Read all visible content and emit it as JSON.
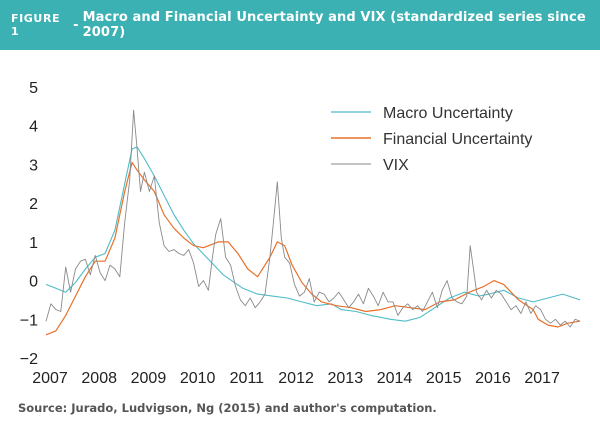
{
  "header": {
    "figure_label": "FIGURE 1",
    "separator": "-",
    "title": "Macro and Financial Uncertainty and VIX (standardized series since 2007)",
    "background_color": "#3cb1b4"
  },
  "footer": {
    "source": "Source: Jurado, Ludvigson, Ng (2015) and author's computation."
  },
  "chart_data": {
    "type": "line",
    "title": "",
    "xlabel": "",
    "ylabel": "",
    "xlim": [
      2007,
      2017.85
    ],
    "ylim": [
      -2,
      5
    ],
    "x_ticks": [
      2007,
      2008,
      2009,
      2010,
      2011,
      2012,
      2013,
      2014,
      2015,
      2016,
      2017
    ],
    "x_tick_labels": [
      "2007",
      "2008",
      "2009",
      "2010",
      "2011",
      "2012",
      "2013",
      "2014",
      "2015",
      "2016",
      "2017"
    ],
    "y_ticks": [
      -2,
      -1,
      0,
      1,
      2,
      3,
      4,
      5
    ],
    "y_tick_labels": [
      "−2",
      "−1",
      "0",
      "1",
      "2",
      "3",
      "4",
      "5"
    ],
    "grid": false,
    "legend": "top-right",
    "series": [
      {
        "name": "Macro Uncertainty",
        "color": "#4fbcc8",
        "width": 1.1,
        "x": [
          2007.0,
          2007.2,
          2007.4,
          2007.6,
          2007.8,
          2008.0,
          2008.2,
          2008.4,
          2008.6,
          2008.75,
          2008.85,
          2009.0,
          2009.2,
          2009.4,
          2009.6,
          2009.8,
          2010.0,
          2010.3,
          2010.6,
          2011.0,
          2011.3,
          2011.6,
          2011.9,
          2012.2,
          2012.5,
          2012.8,
          2013.0,
          2013.3,
          2013.6,
          2014.0,
          2014.3,
          2014.6,
          2014.9,
          2015.2,
          2015.5,
          2015.8,
          2016.0,
          2016.3,
          2016.6,
          2016.9,
          2017.2,
          2017.5,
          2017.85
        ],
        "values": [
          -0.1,
          -0.2,
          -0.3,
          -0.05,
          0.3,
          0.6,
          0.7,
          1.3,
          2.5,
          3.4,
          3.45,
          3.15,
          2.7,
          2.2,
          1.7,
          1.3,
          0.95,
          0.55,
          0.15,
          -0.2,
          -0.35,
          -0.4,
          -0.45,
          -0.55,
          -0.65,
          -0.6,
          -0.75,
          -0.8,
          -0.9,
          -1.0,
          -1.05,
          -0.95,
          -0.7,
          -0.45,
          -0.3,
          -0.4,
          -0.35,
          -0.25,
          -0.45,
          -0.55,
          -0.45,
          -0.35,
          -0.5
        ]
      },
      {
        "name": "Financial Uncertainty",
        "color": "#e8702a",
        "width": 1.2,
        "x": [
          2007.0,
          2007.2,
          2007.4,
          2007.6,
          2007.8,
          2008.0,
          2008.2,
          2008.4,
          2008.6,
          2008.75,
          2008.85,
          2009.0,
          2009.2,
          2009.4,
          2009.6,
          2009.8,
          2010.0,
          2010.2,
          2010.5,
          2010.7,
          2010.9,
          2011.1,
          2011.3,
          2011.55,
          2011.7,
          2011.85,
          2012.0,
          2012.2,
          2012.4,
          2012.6,
          2012.9,
          2013.2,
          2013.5,
          2013.8,
          2014.1,
          2014.4,
          2014.7,
          2015.0,
          2015.3,
          2015.6,
          2015.9,
          2016.1,
          2016.3,
          2016.6,
          2016.9,
          2017.0,
          2017.2,
          2017.4,
          2017.6,
          2017.85
        ],
        "values": [
          -1.4,
          -1.3,
          -0.9,
          -0.4,
          0.1,
          0.5,
          0.5,
          1.1,
          2.3,
          3.05,
          2.85,
          2.6,
          2.3,
          1.7,
          1.35,
          1.1,
          0.9,
          0.85,
          1.0,
          1.0,
          0.7,
          0.3,
          0.1,
          0.6,
          1.0,
          0.9,
          0.4,
          -0.05,
          -0.35,
          -0.55,
          -0.65,
          -0.7,
          -0.8,
          -0.75,
          -0.65,
          -0.7,
          -0.75,
          -0.55,
          -0.5,
          -0.3,
          -0.15,
          0.0,
          -0.1,
          -0.5,
          -0.75,
          -1.0,
          -1.15,
          -1.2,
          -1.1,
          -1.05
        ]
      },
      {
        "name": "VIX",
        "color": "#8a8a8a",
        "width": 0.9,
        "x": [
          2007.0,
          2007.1,
          2007.2,
          2007.3,
          2007.4,
          2007.5,
          2007.6,
          2007.7,
          2007.8,
          2007.9,
          2008.0,
          2008.1,
          2008.2,
          2008.3,
          2008.4,
          2008.5,
          2008.6,
          2008.7,
          2008.78,
          2008.85,
          2008.92,
          2009.0,
          2009.1,
          2009.2,
          2009.3,
          2009.4,
          2009.5,
          2009.6,
          2009.7,
          2009.8,
          2009.9,
          2010.0,
          2010.1,
          2010.2,
          2010.3,
          2010.38,
          2010.45,
          2010.55,
          2010.65,
          2010.75,
          2010.85,
          2010.95,
          2011.05,
          2011.15,
          2011.25,
          2011.35,
          2011.45,
          2011.55,
          2011.62,
          2011.7,
          2011.78,
          2011.85,
          2011.95,
          2012.05,
          2012.15,
          2012.25,
          2012.35,
          2012.45,
          2012.55,
          2012.65,
          2012.75,
          2012.85,
          2012.95,
          2013.05,
          2013.15,
          2013.25,
          2013.35,
          2013.45,
          2013.55,
          2013.65,
          2013.75,
          2013.85,
          2013.95,
          2014.05,
          2014.15,
          2014.25,
          2014.35,
          2014.45,
          2014.55,
          2014.65,
          2014.75,
          2014.85,
          2014.95,
          2015.05,
          2015.15,
          2015.25,
          2015.35,
          2015.45,
          2015.55,
          2015.62,
          2015.68,
          2015.75,
          2015.85,
          2015.95,
          2016.05,
          2016.15,
          2016.25,
          2016.35,
          2016.45,
          2016.55,
          2016.65,
          2016.75,
          2016.85,
          2016.95,
          2017.05,
          2017.15,
          2017.25,
          2017.35,
          2017.45,
          2017.55,
          2017.65,
          2017.75,
          2017.85
        ],
        "values": [
          -1.05,
          -0.6,
          -0.75,
          -0.8,
          0.35,
          -0.3,
          0.3,
          0.5,
          0.55,
          0.15,
          0.65,
          0.2,
          0.0,
          0.4,
          0.3,
          0.1,
          1.5,
          2.6,
          4.4,
          3.4,
          2.3,
          2.8,
          2.3,
          2.7,
          1.5,
          0.9,
          0.75,
          0.8,
          0.7,
          0.65,
          0.8,
          0.45,
          -0.15,
          0.0,
          -0.25,
          0.6,
          1.2,
          1.6,
          0.6,
          0.4,
          -0.15,
          -0.5,
          -0.65,
          -0.45,
          -0.7,
          -0.55,
          -0.35,
          0.6,
          1.5,
          2.55,
          1.1,
          0.6,
          0.45,
          -0.1,
          -0.4,
          -0.3,
          0.05,
          -0.55,
          -0.3,
          -0.35,
          -0.55,
          -0.45,
          -0.3,
          -0.5,
          -0.7,
          -0.55,
          -0.35,
          -0.6,
          -0.2,
          -0.4,
          -0.65,
          -0.3,
          -0.55,
          -0.55,
          -0.9,
          -0.7,
          -0.6,
          -0.75,
          -0.65,
          -0.8,
          -0.55,
          -0.3,
          -0.7,
          -0.25,
          0.0,
          -0.45,
          -0.55,
          -0.6,
          -0.4,
          0.9,
          0.35,
          -0.3,
          -0.5,
          -0.25,
          -0.45,
          -0.25,
          -0.35,
          -0.55,
          -0.75,
          -0.65,
          -0.85,
          -0.55,
          -0.85,
          -0.65,
          -0.75,
          -1.0,
          -1.1,
          -1.0,
          -1.15,
          -1.05,
          -1.2,
          -1.0,
          -1.05
        ]
      }
    ]
  }
}
